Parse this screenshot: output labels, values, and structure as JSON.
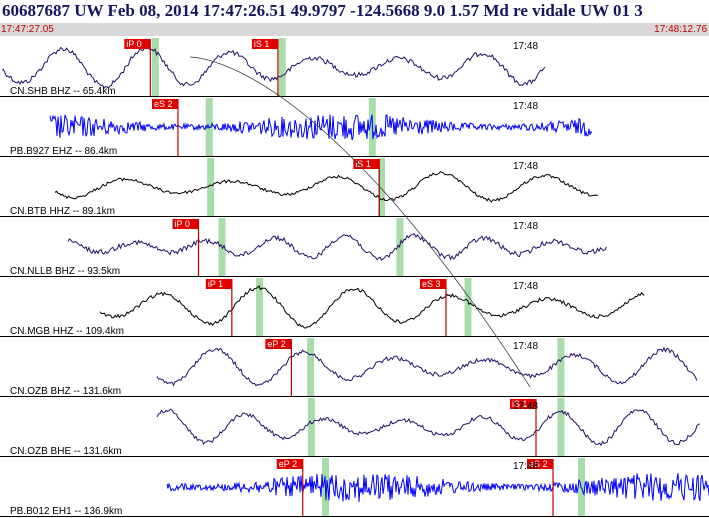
{
  "header": {
    "title": "60687687 UW Feb 08, 2014 17:47:26.51    49.9797  -124.5668   9.0  1.57  Md re vidale UW 01    3",
    "start_time": "17:47:27.05",
    "end_time": "17:48:12.76"
  },
  "colors": {
    "title": "#151560",
    "time_label": "#c00000",
    "pick_box": "#e00000",
    "pick_line": "#c00000",
    "green_band": "#a8dca8",
    "trace_short_period": "#0000ff",
    "trace_broadband": "#221166"
  },
  "traces": [
    {
      "label": "CN.SHB BHZ -- 65.4km",
      "minute": "17:48",
      "color": "#221166",
      "picks": [
        {
          "label": "iP 0",
          "t": 0.212
        },
        {
          "label": "iS 1",
          "t": 0.392
        }
      ],
      "bands": [
        0.217,
        0.396
      ]
    },
    {
      "label": "PB.B927 EHZ -- 86.4km",
      "minute": "17:48",
      "color": "#0000ff",
      "picks": [
        {
          "label": "eS 2",
          "t": 0.251
        }
      ],
      "bands": [
        0.293,
        0.523
      ]
    },
    {
      "label": "CN.BTB HHZ -- 89.1km",
      "minute": "17:48",
      "color": "#000000",
      "picks": [
        {
          "label": "iS 1",
          "t": 0.535
        }
      ],
      "bands": [
        0.295,
        0.536
      ]
    },
    {
      "label": "CN.NLLB BHZ -- 93.5km",
      "minute": "17:48",
      "color": "#221166",
      "picks": [
        {
          "label": "iP 0",
          "t": 0.28
        }
      ],
      "bands": [
        0.311,
        0.562
      ]
    },
    {
      "label": "CN.MGB HHZ -- 109.4km",
      "minute": "17:48",
      "color": "#000000",
      "picks": [
        {
          "label": "iP 1",
          "t": 0.327
        },
        {
          "label": "eS 3",
          "t": 0.629
        }
      ],
      "bands": [
        0.364,
        0.658
      ]
    },
    {
      "label": "CN.OZB BHZ -- 131.6km",
      "minute": "17:48",
      "color": "#221166",
      "picks": [
        {
          "label": "eP 2",
          "t": 0.411
        }
      ],
      "bands": [
        0.436,
        0.789
      ]
    },
    {
      "label": "CN.OZB BHE -- 131.6km",
      "minute": "17:48",
      "color": "#221166",
      "picks": [
        {
          "label": "iS 1",
          "t": 0.756
        }
      ],
      "bands": [
        0.437,
        0.789
      ]
    },
    {
      "label": "PB.B012 EH1 -- 136.9km",
      "minute": "17:48",
      "color": "#0000ff",
      "picks": [
        {
          "label": "eP 2",
          "t": 0.427
        },
        {
          "label": "eS 2",
          "t": 0.78
        }
      ],
      "bands": [
        0.457,
        0.818
      ]
    }
  ]
}
